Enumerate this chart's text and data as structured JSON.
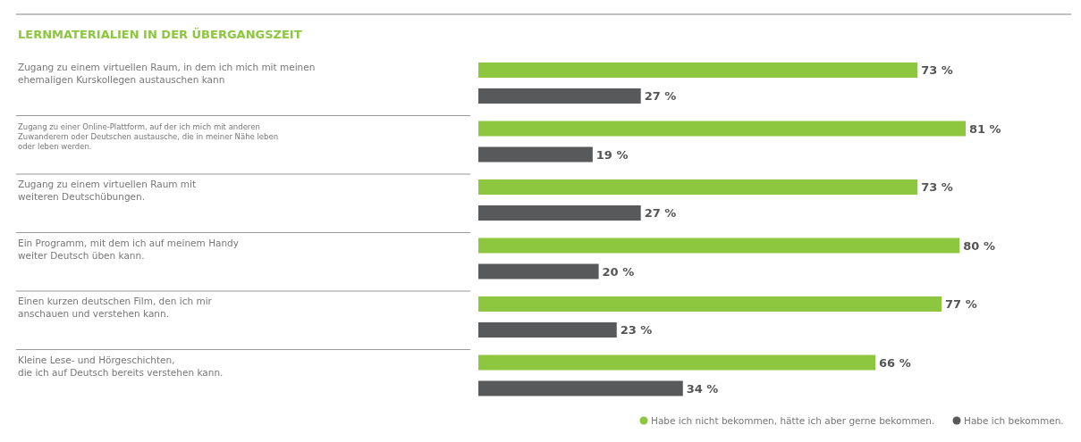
{
  "chart_data": {
    "type": "bar",
    "orientation": "horizontal",
    "title": "LERNMATERIALIEN IN DER ÜBERGANGSZEIT",
    "categories": [
      "Zugang zu einem virtuellen Raum, in dem ich mich mit meinen\nehemaligen Kurskollegen austauschen kann",
      "Zugang zu einer Online-Plattform, auf der ich mich mit anderen\nZuwanderern oder Deutschen austausche, die in meiner Nähe leben\noder leben werden.",
      "Zugang zu einem virtuellen Raum mit\nweiteren Deutschübungen.",
      "Ein Programm, mit dem ich auf meinem Handy\nweiter Deutsch üben kann.",
      "Einen kurzen deutschen Film, den ich mir\nanschauen und verstehen kann.",
      "Kleine Lese- und Hörgeschichten,\ndie ich auf Deutsch bereits verstehen kann."
    ],
    "series": [
      {
        "name": "Habe ich nicht bekommen, hätte ich aber gerne bekommen.",
        "color": "#8dc63f",
        "values": [
          73,
          81,
          73,
          80,
          77,
          66
        ],
        "value_labels": [
          "73 %",
          "81 %",
          "73 %",
          "80 %",
          "77 %",
          "66 %"
        ]
      },
      {
        "name": "Habe ich bekommen.",
        "color": "#58595b",
        "values": [
          27,
          19,
          27,
          20,
          23,
          34
        ],
        "value_labels": [
          "27 %",
          "19 %",
          "27 %",
          "20 %",
          "23 %",
          "34 %"
        ]
      }
    ],
    "legend": "bottom right"
  }
}
